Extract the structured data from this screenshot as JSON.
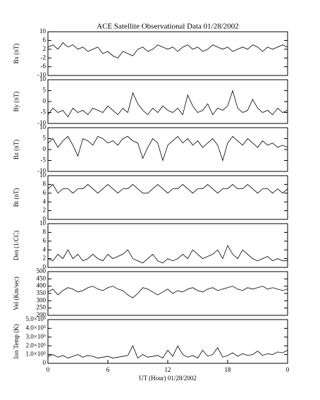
{
  "chart_data": [
    {
      "type": "line",
      "title": "ACE Satellite Observational Data   01/28/2002",
      "ylabel": "Bx (nT)",
      "color": "#000000",
      "x": [
        0,
        0.5,
        1,
        1.5,
        2,
        2.5,
        3,
        3.5,
        4,
        4.5,
        5,
        5.5,
        6,
        6.5,
        7,
        7.5,
        8,
        8.5,
        9,
        9.5,
        10,
        10.5,
        11,
        11.5,
        12,
        12.5,
        13,
        13.5,
        14,
        14.5,
        15,
        15.5,
        16,
        16.5,
        17,
        17.5,
        18,
        18.5,
        19,
        19.5,
        20,
        20.5,
        21,
        21.5,
        22,
        22.5,
        23,
        23.5,
        24
      ],
      "values": [
        3,
        4,
        2,
        5,
        3,
        4,
        2,
        3,
        1,
        2,
        3,
        0,
        1,
        -1,
        -2,
        1,
        0,
        -1,
        2,
        3,
        1,
        2,
        4,
        3,
        2,
        3,
        1,
        3,
        4,
        2,
        3,
        1,
        2,
        4,
        3,
        2,
        3,
        1,
        2,
        3,
        2,
        4,
        3,
        1,
        3,
        2,
        3,
        4,
        3
      ],
      "xlim": [
        0,
        24
      ],
      "ylim": [
        -10,
        10
      ],
      "yticks": [
        -10,
        -6,
        -2,
        2,
        6,
        10
      ]
    },
    {
      "type": "line",
      "ylabel": "By (nT)",
      "color": "#000000",
      "x": [
        0,
        0.5,
        1,
        1.5,
        2,
        2.5,
        3,
        3.5,
        4,
        4.5,
        5,
        5.5,
        6,
        6.5,
        7,
        7.5,
        8,
        8.5,
        9,
        9.5,
        10,
        10.5,
        11,
        11.5,
        12,
        12.5,
        13,
        13.5,
        14,
        14.5,
        15,
        15.5,
        16,
        16.5,
        17,
        17.5,
        18,
        18.5,
        19,
        19.5,
        20,
        20.5,
        21,
        21.5,
        22,
        22.5,
        23,
        23.5,
        24
      ],
      "values": [
        -6,
        -3,
        -5,
        -4,
        -7,
        -3,
        -5,
        -4,
        -6,
        -3,
        -4,
        -5,
        -2,
        -4,
        -6,
        -3,
        -5,
        4,
        -1,
        -4,
        -6,
        -3,
        -5,
        -2,
        -4,
        -5,
        -3,
        -6,
        3,
        -2,
        -5,
        -4,
        -1,
        -6,
        -3,
        -4,
        -2,
        5,
        -3,
        -5,
        -4,
        1,
        -3,
        -5,
        -4,
        -6,
        -3,
        -5,
        -4
      ],
      "xlim": [
        0,
        24
      ],
      "ylim": [
        -10,
        10
      ],
      "yticks": [
        -10,
        -5,
        0,
        5,
        10
      ]
    },
    {
      "type": "line",
      "ylabel": "Bz (nT)",
      "color": "#000000",
      "x": [
        0,
        0.5,
        1,
        1.5,
        2,
        2.5,
        3,
        3.5,
        4,
        4.5,
        5,
        5.5,
        6,
        6.5,
        7,
        7.5,
        8,
        8.5,
        9,
        9.5,
        10,
        10.5,
        11,
        11.5,
        12,
        12.5,
        13,
        13.5,
        14,
        14.5,
        15,
        15.5,
        16,
        16.5,
        17,
        17.5,
        18,
        18.5,
        19,
        19.5,
        20,
        20.5,
        21,
        21.5,
        22,
        22.5,
        23,
        23.5,
        24
      ],
      "values": [
        3,
        5,
        1,
        4,
        6,
        2,
        -3,
        5,
        4,
        2,
        6,
        5,
        3,
        4,
        2,
        5,
        6,
        4,
        3,
        -4,
        1,
        5,
        3,
        -5,
        2,
        4,
        6,
        3,
        5,
        2,
        4,
        1,
        3,
        5,
        2,
        -5,
        3,
        6,
        4,
        2,
        5,
        3,
        1,
        4,
        2,
        3,
        1,
        2,
        1
      ],
      "xlim": [
        0,
        24
      ],
      "ylim": [
        -10,
        10
      ],
      "yticks": [
        -10,
        -5,
        0,
        5,
        10
      ]
    },
    {
      "type": "line",
      "ylabel": "Bt (nT)",
      "color": "#000000",
      "x": [
        0,
        0.5,
        1,
        1.5,
        2,
        2.5,
        3,
        3.5,
        4,
        4.5,
        5,
        5.5,
        6,
        6.5,
        7,
        7.5,
        8,
        8.5,
        9,
        9.5,
        10,
        10.5,
        11,
        11.5,
        12,
        12.5,
        13,
        13.5,
        14,
        14.5,
        15,
        15.5,
        16,
        16.5,
        17,
        17.5,
        18,
        18.5,
        19,
        19.5,
        20,
        20.5,
        21,
        21.5,
        22,
        22.5,
        23,
        23.5,
        24
      ],
      "values": [
        7,
        8,
        6,
        7,
        7,
        6,
        7,
        7,
        8,
        7,
        6,
        7,
        8,
        7,
        6,
        7,
        7,
        8,
        7,
        6,
        6,
        7,
        8,
        7,
        6,
        7,
        7,
        8,
        7,
        6,
        7,
        7,
        8,
        7,
        6,
        7,
        7,
        8,
        7,
        7,
        8,
        7,
        6,
        7,
        7,
        6,
        7,
        6,
        7
      ],
      "xlim": [
        0,
        24
      ],
      "ylim": [
        0,
        10
      ],
      "yticks": [
        0,
        2,
        4,
        6,
        8,
        10
      ]
    },
    {
      "type": "line",
      "ylabel": "Den (1/CC)",
      "color": "#000000",
      "x": [
        0,
        0.5,
        1,
        1.5,
        2,
        2.5,
        3,
        3.5,
        4,
        4.5,
        5,
        5.5,
        6,
        6.5,
        7,
        7.5,
        8,
        8.5,
        9,
        9.5,
        10,
        10.5,
        11,
        11.5,
        12,
        12.5,
        13,
        13.5,
        14,
        14.5,
        15,
        15.5,
        16,
        16.5,
        17,
        17.5,
        18,
        18.5,
        19,
        19.5,
        20,
        20.5,
        21,
        21.5,
        22,
        22.5,
        23,
        23.5,
        24
      ],
      "values": [
        2,
        1.5,
        3,
        2,
        4,
        2,
        3,
        1.5,
        2,
        3,
        2,
        1.5,
        3,
        2,
        2.5,
        3,
        4,
        2,
        1.5,
        1,
        2,
        3,
        1.5,
        1,
        2,
        1.5,
        2,
        3,
        2,
        4,
        3,
        2,
        2.5,
        3,
        4,
        2,
        5,
        3,
        2,
        4,
        3,
        2,
        1.5,
        2,
        2.5,
        1.5,
        2,
        1.5,
        1.5
      ],
      "xlim": [
        0,
        24
      ],
      "ylim": [
        0,
        10
      ],
      "yticks": [
        0,
        2,
        4,
        6,
        8,
        10
      ]
    },
    {
      "type": "line",
      "ylabel": "Vel (Km/sec)",
      "color": "#000000",
      "x": [
        0,
        0.5,
        1,
        1.5,
        2,
        2.5,
        3,
        3.5,
        4,
        4.5,
        5,
        5.5,
        6,
        6.5,
        7,
        7.5,
        8,
        8.5,
        9,
        9.5,
        10,
        10.5,
        11,
        11.5,
        12,
        12.5,
        13,
        13.5,
        14,
        14.5,
        15,
        15.5,
        16,
        16.5,
        17,
        17.5,
        18,
        18.5,
        19,
        19.5,
        20,
        20.5,
        21,
        21.5,
        22,
        22.5,
        23,
        23.5,
        24
      ],
      "values": [
        360,
        380,
        340,
        370,
        390,
        380,
        360,
        370,
        390,
        400,
        380,
        370,
        390,
        400,
        380,
        370,
        340,
        320,
        350,
        390,
        380,
        360,
        340,
        360,
        380,
        350,
        370,
        360,
        380,
        390,
        370,
        360,
        380,
        390,
        370,
        380,
        390,
        400,
        380,
        370,
        390,
        380,
        390,
        400,
        380,
        390,
        380,
        370,
        380
      ],
      "xlim": [
        0,
        24
      ],
      "ylim": [
        200,
        500
      ],
      "yticks": [
        200,
        250,
        300,
        350,
        400,
        450,
        500
      ]
    },
    {
      "type": "line",
      "ylabel": "Ion Temp (K)",
      "xlabel": "UT (Hour)  01/28/2002",
      "color": "#000000",
      "x": [
        0,
        0.5,
        1,
        1.5,
        2,
        2.5,
        3,
        3.5,
        4,
        4.5,
        5,
        5.5,
        6,
        6.5,
        7,
        7.5,
        8,
        8.5,
        9,
        9.5,
        10,
        10.5,
        11,
        11.5,
        12,
        12.5,
        13,
        13.5,
        14,
        14.5,
        15,
        15.5,
        16,
        16.5,
        17,
        17.5,
        18,
        18.5,
        19,
        19.5,
        20,
        20.5,
        21,
        21.5,
        22,
        22.5,
        23,
        23.5,
        24
      ],
      "values": [
        80000,
        100000,
        70000,
        90000,
        60000,
        80000,
        100000,
        70000,
        90000,
        80000,
        60000,
        70000,
        80000,
        60000,
        70000,
        80000,
        90000,
        200000,
        60000,
        100000,
        70000,
        80000,
        90000,
        60000,
        150000,
        80000,
        200000,
        100000,
        70000,
        90000,
        60000,
        150000,
        80000,
        100000,
        180000,
        70000,
        90000,
        120000,
        80000,
        110000,
        90000,
        100000,
        140000,
        90000,
        110000,
        100000,
        130000,
        120000,
        150000
      ],
      "xlim": [
        0,
        24
      ],
      "xticks": [
        0,
        6,
        12,
        18,
        {
          "value": 24,
          "label": "0"
        }
      ],
      "ylim": [
        0,
        500000
      ],
      "yticks": [
        0,
        {
          "value": 100000,
          "label": "1.0×10⁵"
        },
        {
          "value": 200000,
          "label": "2.0×10⁵"
        },
        {
          "value": 300000,
          "label": "3.0×10⁵"
        },
        {
          "value": 400000,
          "label": "4.0×10⁵"
        },
        {
          "value": 500000,
          "label": "5.0×10⁵"
        }
      ]
    }
  ]
}
